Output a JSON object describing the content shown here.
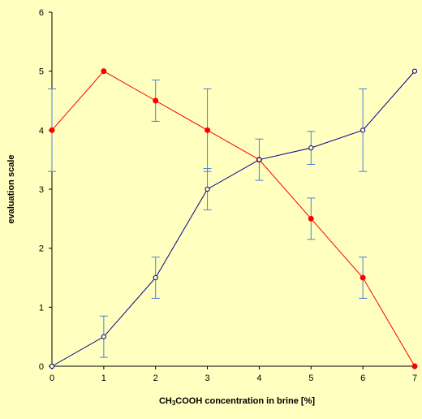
{
  "chart_data": {
    "type": "line",
    "title": "",
    "xlabel": {
      "prefix": "CH",
      "sub": "3",
      "suffix": "COOH concentration in brine [%]"
    },
    "ylabel": "evaluation scale",
    "xlim": [
      0,
      7
    ],
    "ylim": [
      0,
      6
    ],
    "xticks": [
      0,
      1,
      2,
      3,
      4,
      5,
      6,
      7
    ],
    "yticks": [
      0,
      1,
      2,
      3,
      4,
      5,
      6
    ],
    "grid": false,
    "legend": "none",
    "x": [
      0,
      1,
      2,
      3,
      4,
      5,
      6,
      7
    ],
    "series": [
      {
        "color": "#ff0000",
        "marker": "filled-circle",
        "values": [
          4,
          5,
          4.5,
          4,
          3.5,
          2.5,
          1.5,
          0
        ],
        "error": [
          0.7,
          null,
          0.35,
          0.7,
          0.35,
          0.35,
          0.35,
          null
        ]
      },
      {
        "color": "#00008b",
        "marker": "open-circle",
        "values": [
          0,
          0.5,
          1.5,
          3,
          3.5,
          3.7,
          4,
          5
        ],
        "error": [
          null,
          0.35,
          0.35,
          0.35,
          null,
          0.28,
          0.7,
          null
        ]
      }
    ],
    "errorbar_color": "#4f7fd6"
  }
}
